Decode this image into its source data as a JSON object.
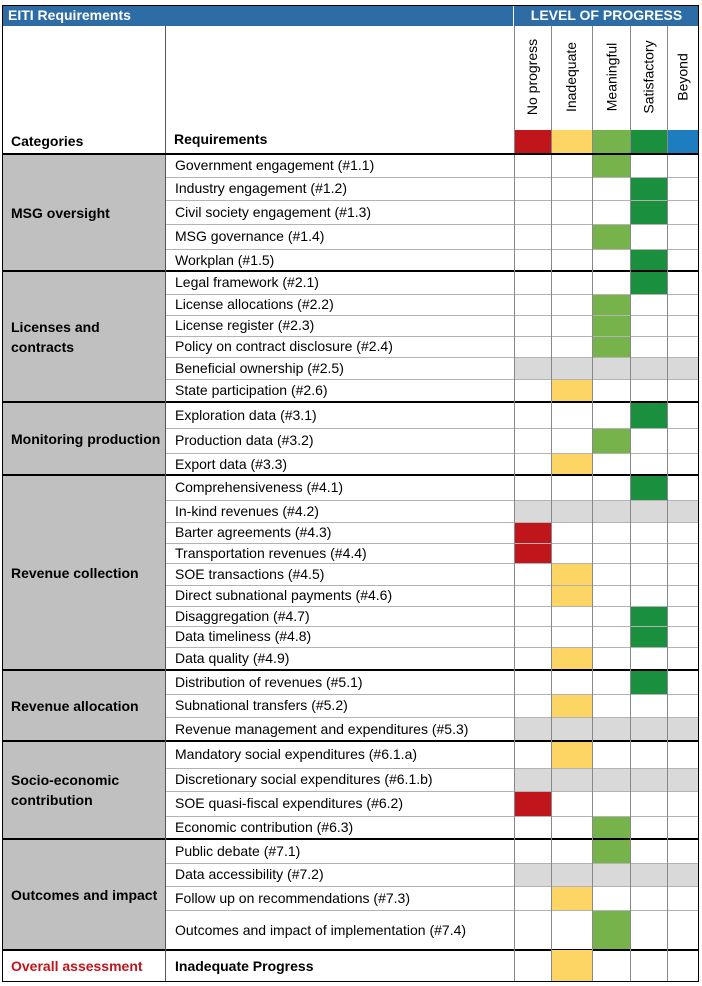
{
  "header": {
    "left_title": "EITI Requirements",
    "right_title": "LEVEL OF PROGRESS",
    "categories_label": "Categories",
    "requirements_label": "Requirements"
  },
  "levels": [
    {
      "key": "no",
      "label": "No progress",
      "color": "#c0161b"
    },
    {
      "key": "inadequate",
      "label": "Inadequate",
      "color": "#fdd565"
    },
    {
      "key": "meaningful",
      "label": "Meaningful",
      "color": "#77b34b"
    },
    {
      "key": "satisfactory",
      "label": "Satisfactory",
      "color": "#1a8f3e"
    },
    {
      "key": "beyond",
      "label": "Beyond",
      "color": "#1d7dbf"
    }
  ],
  "colors": {
    "header_bg": "#2e6ca5",
    "category_bg": "#c0c0c0",
    "not_applicable_bg": "#d9d9d9",
    "overall_text": "#c0161b"
  },
  "groups": [
    {
      "label": "MSG oversight",
      "rows": [
        {
          "text": "Government engagement (#1.1)",
          "level": 2
        },
        {
          "text": "Industry engagement (#1.2)",
          "level": 3
        },
        {
          "text": "Civil society engagement (#1.3)",
          "level": 3
        },
        {
          "text": "MSG governance (#1.4)",
          "level": 2
        },
        {
          "text": "Workplan (#1.5)",
          "level": 3
        }
      ]
    },
    {
      "label": "Licenses and contracts",
      "rows": [
        {
          "text": "Legal framework (#2.1)",
          "level": 3
        },
        {
          "text": "License allocations (#2.2)",
          "level": 2
        },
        {
          "text": "License register (#2.3)",
          "level": 2
        },
        {
          "text": "Policy on contract disclosure (#2.4)",
          "level": 2
        },
        {
          "text": "Beneficial ownership (#2.5)",
          "level": "na"
        },
        {
          "text": "State participation (#2.6)",
          "level": 1
        }
      ]
    },
    {
      "label": "Monitoring production",
      "rows": [
        {
          "text": "Exploration data (#3.1)",
          "level": 3
        },
        {
          "text": "Production data (#3.2)",
          "level": 2
        },
        {
          "text": "Export data (#3.3)",
          "level": 1
        }
      ]
    },
    {
      "label": "Revenue collection",
      "rows": [
        {
          "text": "Comprehensiveness (#4.1)",
          "level": 3
        },
        {
          "text": "In-kind revenues (#4.2)",
          "level": "na"
        },
        {
          "text": "Barter agreements (#4.3)",
          "level": 0
        },
        {
          "text": "Transportation revenues (#4.4)",
          "level": 0
        },
        {
          "text": "SOE transactions (#4.5)",
          "level": 1
        },
        {
          "text": "Direct subnational payments (#4.6)",
          "level": 1
        },
        {
          "text": "Disaggregation (#4.7)",
          "level": 3
        },
        {
          "text": "Data timeliness (#4.8)",
          "level": 3
        },
        {
          "text": "Data quality (#4.9)",
          "level": 1
        }
      ]
    },
    {
      "label": "Revenue allocation",
      "rows": [
        {
          "text": "Distribution of revenues (#5.1)",
          "level": 3
        },
        {
          "text": "Subnational transfers (#5.2)",
          "level": 1
        },
        {
          "text": "Revenue management and expenditures (#5.3)",
          "level": "na"
        }
      ]
    },
    {
      "label": "Socio-economic contribution",
      "rows": [
        {
          "text": "Mandatory social expenditures (#6.1.a)",
          "level": 1
        },
        {
          "text": "Discretionary social expenditures (#6.1.b)",
          "level": "na"
        },
        {
          "text": "SOE quasi-fiscal expenditures (#6.2)",
          "level": 0
        },
        {
          "text": "Economic contribution (#6.3)",
          "level": 2
        }
      ]
    },
    {
      "label": "Outcomes and impact",
      "rows": [
        {
          "text": "Public debate (#7.1)",
          "level": 2
        },
        {
          "text": "Data accessibility (#7.2)",
          "level": "na"
        },
        {
          "text": "Follow up on recommendations (#7.3)",
          "level": 1
        },
        {
          "text": "Outcomes and impact of implementation (#7.4)",
          "level": 2
        }
      ]
    }
  ],
  "overall": {
    "label": "Overall assessment",
    "value": "Inadequate Progress",
    "level": 1
  }
}
